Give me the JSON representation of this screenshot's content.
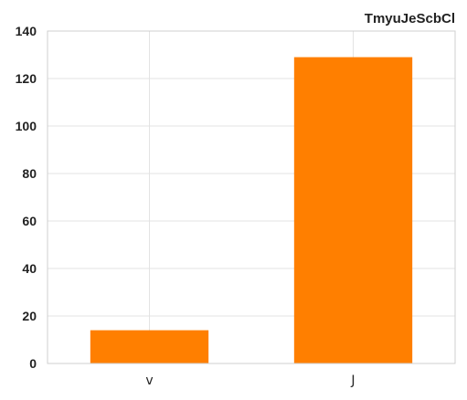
{
  "chart_data": {
    "type": "bar",
    "title": "TmyuJeScbCl",
    "xlabel": "",
    "ylabel": "",
    "categories": [
      "v",
      "J"
    ],
    "values": [
      14,
      129
    ],
    "ylim": [
      0,
      140
    ],
    "yticks": [
      0,
      20,
      40,
      60,
      80,
      100,
      120,
      140
    ],
    "grid": true,
    "bar_color": "#ff7f00",
    "title_placement": "top-right"
  }
}
